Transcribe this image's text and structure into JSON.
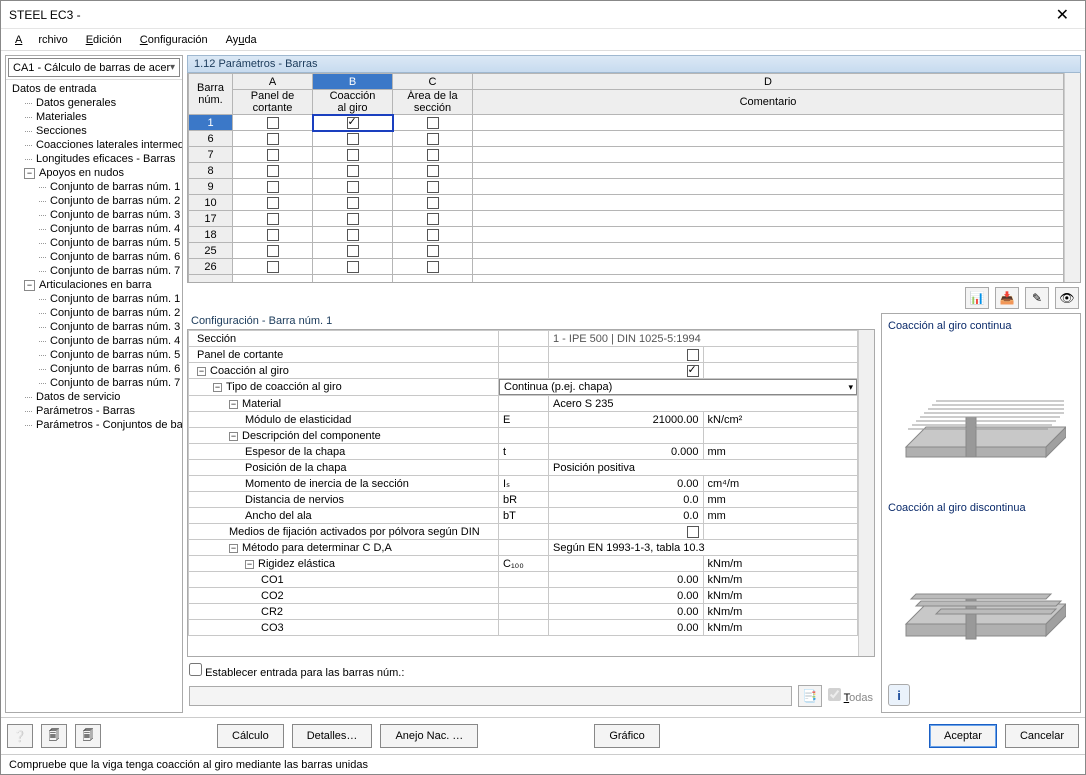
{
  "window": {
    "title": "STEEL EC3 -",
    "close": "✕"
  },
  "menu": {
    "items": [
      "Archivo",
      "Edición",
      "Configuración",
      "Ayuda"
    ]
  },
  "combo": {
    "value": "CA1 - Cálculo de barras de acer"
  },
  "tree": {
    "root": "Datos de entrada",
    "items": [
      {
        "l": "Datos generales",
        "d": 1
      },
      {
        "l": "Materiales",
        "d": 1
      },
      {
        "l": "Secciones",
        "d": 1
      },
      {
        "l": "Coacciones laterales intermedias",
        "d": 1
      },
      {
        "l": "Longitudes eficaces - Barras",
        "d": 1
      }
    ],
    "apoyos": {
      "label": "Apoyos en nudos",
      "exp": "−",
      "children": [
        "Conjunto de barras núm. 1",
        "Conjunto de barras núm. 2",
        "Conjunto de barras núm. 3",
        "Conjunto de barras núm. 4",
        "Conjunto de barras núm. 5",
        "Conjunto de barras núm. 6",
        "Conjunto de barras núm. 7"
      ]
    },
    "artic": {
      "label": "Articulaciones en barra",
      "exp": "−",
      "children": [
        "Conjunto de barras núm. 1",
        "Conjunto de barras núm. 2",
        "Conjunto de barras núm. 3",
        "Conjunto de barras núm. 4",
        "Conjunto de barras núm. 5",
        "Conjunto de barras núm. 6",
        "Conjunto de barras núm. 7"
      ]
    },
    "tail": [
      "Datos de servicio",
      "Parámetros - Barras",
      "Parámetros - Conjuntos de bar"
    ]
  },
  "grid": {
    "title": "1.12 Parámetros - Barras",
    "colLetters": [
      "A",
      "B",
      "C",
      "D"
    ],
    "barHdr": "Barra\nnúm.",
    "headers": [
      "Panel de\ncortante",
      "Coacción\nal giro",
      "Área de la\nsección",
      "Comentario"
    ],
    "selCol": 1,
    "rows": [
      {
        "n": "1",
        "a": false,
        "b": true,
        "c": false,
        "sel": true,
        "bsel": true
      },
      {
        "n": "6",
        "a": false,
        "b": false,
        "c": false
      },
      {
        "n": "7",
        "a": false,
        "b": false,
        "c": false
      },
      {
        "n": "8",
        "a": false,
        "b": false,
        "c": false
      },
      {
        "n": "9",
        "a": false,
        "b": false,
        "c": false
      },
      {
        "n": "10",
        "a": false,
        "b": false,
        "c": false
      },
      {
        "n": "17",
        "a": false,
        "b": false,
        "c": false
      },
      {
        "n": "18",
        "a": false,
        "b": false,
        "c": false
      },
      {
        "n": "25",
        "a": false,
        "b": false,
        "c": false
      },
      {
        "n": "26",
        "a": false,
        "b": false,
        "c": false
      }
    ]
  },
  "iconbar": {
    "i1": "xls-down",
    "i2": "xls-up",
    "i3": "pick",
    "i4": "eye"
  },
  "cfg": {
    "title": "Configuración - Barra núm. 1",
    "rows": [
      {
        "k": "Sección",
        "ind": 0,
        "v": "1 - IPE 500 | DIN 1025-5:1994",
        "span": true,
        "ro": true
      },
      {
        "k": "Panel de cortante",
        "ind": 0,
        "chk": false
      },
      {
        "k": "Coacción al giro",
        "ind": 0,
        "exp": "−",
        "chk": true
      },
      {
        "k": "Tipo de coacción al giro",
        "ind": 1,
        "exp": "−",
        "combo": "Continua (p.ej. chapa)"
      },
      {
        "k": "Material",
        "ind": 2,
        "exp": "−",
        "v": "Acero S 235",
        "span": true
      },
      {
        "k": "Módulo de elasticidad",
        "ind": 3,
        "s": "E",
        "v": "21000.00",
        "u": "kN/cm²"
      },
      {
        "k": "Descripción del componente",
        "ind": 2,
        "exp": "−"
      },
      {
        "k": "Espesor de la chapa",
        "ind": 3,
        "s": "t",
        "v": "0.000",
        "u": "mm"
      },
      {
        "k": "Posición de la chapa",
        "ind": 3,
        "v": "Posición positiva",
        "span": true
      },
      {
        "k": "Momento de inercia de la sección",
        "ind": 3,
        "s": "Iₛ",
        "v": "0.00",
        "u": "cm⁴/m"
      },
      {
        "k": "Distancia de nervios",
        "ind": 3,
        "s": "bR",
        "v": "0.0",
        "u": "mm"
      },
      {
        "k": "Ancho del ala",
        "ind": 3,
        "s": "bT",
        "v": "0.0",
        "u": "mm"
      },
      {
        "k": "Medios de fijación activados por pólvora según DIN",
        "ind": 2,
        "chk": false
      },
      {
        "k": "Método para determinar C D,A",
        "ind": 2,
        "exp": "−",
        "v": "Según EN 1993-1-3, tabla 10.3",
        "span": true
      },
      {
        "k": "Rigidez elástica",
        "ind": 3,
        "exp": "−",
        "s": "C₁₀₀",
        "v": "",
        "u": "kNm/m"
      },
      {
        "k": "CO1",
        "ind": 4,
        "v": "0.00",
        "u": "kNm/m"
      },
      {
        "k": "CO2",
        "ind": 4,
        "v": "0.00",
        "u": "kNm/m"
      },
      {
        "k": "CR2",
        "ind": 4,
        "v": "0.00",
        "u": "kNm/m"
      },
      {
        "k": "CO3",
        "ind": 4,
        "v": "0.00",
        "u": "kNm/m"
      }
    ],
    "setLabel": "Establecer entrada para las barras núm.:",
    "todas": "Todas"
  },
  "side": {
    "cap1": "Coacción al giro continua",
    "cap2": "Coacción al giro discontinua"
  },
  "buttons": {
    "calc": "Cálculo",
    "det": "Detalles…",
    "anejo": "Anejo Nac. …",
    "graf": "Gráfico",
    "ok": "Aceptar",
    "cancel": "Cancelar"
  },
  "status": "Compruebe que la viga tenga coacción al giro mediante las barras unidas"
}
